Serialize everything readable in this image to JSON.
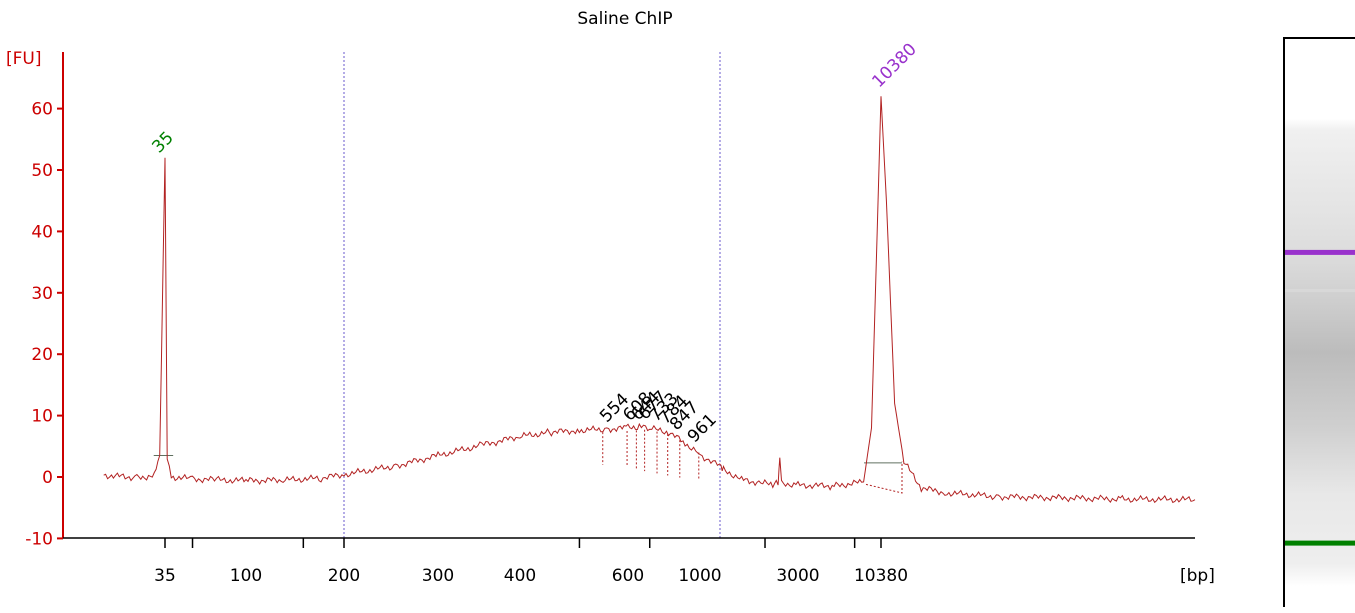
{
  "chart_data": {
    "type": "line",
    "title": "Saline ChIP",
    "ylabel": "[FU]",
    "xlabel": "[bp]",
    "ylim": [
      -10,
      65
    ],
    "y_ticks": [
      -10,
      0,
      10,
      20,
      30,
      40,
      50,
      60
    ],
    "x_scale": "ladder (non-linear bp)",
    "x_tick_labels": [
      "35",
      "100",
      "200",
      "300",
      "400",
      "600",
      "1000",
      "3000",
      "10380"
    ],
    "grid": false,
    "series": [
      {
        "color": "#b22222",
        "points": [
          [
            25,
            0.3
          ],
          [
            30,
            -0.1
          ],
          [
            33,
            0.2
          ],
          [
            34,
            3.5
          ],
          [
            35,
            52
          ],
          [
            36,
            3.5
          ],
          [
            38,
            0.0
          ],
          [
            50,
            -0.3
          ],
          [
            70,
            -0.5
          ],
          [
            100,
            -0.6
          ],
          [
            130,
            -0.5
          ],
          [
            170,
            -0.2
          ],
          [
            200,
            0.4
          ],
          [
            250,
            1.8
          ],
          [
            300,
            3.5
          ],
          [
            350,
            5.2
          ],
          [
            400,
            6.6
          ],
          [
            450,
            7.3
          ],
          [
            500,
            7.6
          ],
          [
            554,
            7.8
          ],
          [
            600,
            8.0
          ],
          [
            650,
            8.2
          ],
          [
            700,
            7.9
          ],
          [
            800,
            7.3
          ],
          [
            900,
            5.5
          ],
          [
            1000,
            3.6
          ],
          [
            1200,
            1.2
          ],
          [
            1500,
            -0.4
          ],
          [
            1900,
            -1.0
          ],
          [
            2200,
            -1.2
          ],
          [
            2350,
            -0.8
          ],
          [
            2400,
            3.2
          ],
          [
            2450,
            -1.0
          ],
          [
            3000,
            -1.3
          ],
          [
            5000,
            -1.5
          ],
          [
            8000,
            -0.8
          ],
          [
            9000,
            8
          ],
          [
            9800,
            40
          ],
          [
            10380,
            62
          ],
          [
            10700,
            45
          ],
          [
            11200,
            12
          ],
          [
            11800,
            2.5
          ],
          [
            13000,
            -1.8
          ],
          [
            15000,
            -2.6
          ],
          [
            20000,
            -3.2
          ],
          [
            40000,
            -3.6
          ],
          [
            60000,
            -3.7
          ]
        ]
      }
    ],
    "peak_labels": [
      {
        "text": "35",
        "x": 35,
        "y": 52,
        "color": "#008000"
      },
      {
        "text": "10380",
        "x": 10380,
        "y": 62,
        "color": "#9932cc"
      },
      {
        "text": "554",
        "x": 554,
        "y": 7.8,
        "color": "#000000"
      },
      {
        "text": "608",
        "x": 608,
        "y": 8.0,
        "color": "#000000"
      },
      {
        "text": "644",
        "x": 644,
        "y": 8.1,
        "color": "#000000"
      },
      {
        "text": "677",
        "x": 677,
        "y": 8.2,
        "color": "#000000"
      },
      {
        "text": "733",
        "x": 733,
        "y": 7.9,
        "color": "#000000"
      },
      {
        "text": "784",
        "x": 784,
        "y": 7.5,
        "color": "#000000"
      },
      {
        "text": "847",
        "x": 847,
        "y": 6.5,
        "color": "#000000"
      },
      {
        "text": "961",
        "x": 961,
        "y": 4.5,
        "color": "#000000"
      }
    ],
    "region_markers_bp": [
      200,
      1150
    ]
  },
  "colors": {
    "axis": "#cc0000",
    "trace": "#b22222",
    "marker_line": "#6a5acd",
    "lower_marker": "#008000",
    "upper_marker": "#9932cc"
  },
  "gel_lane": {
    "bands": [
      {
        "name": "upper-marker",
        "color": "#9932cc",
        "level": 0.37
      },
      {
        "name": "lower-marker",
        "color": "#008000",
        "level": 0.88
      }
    ]
  }
}
